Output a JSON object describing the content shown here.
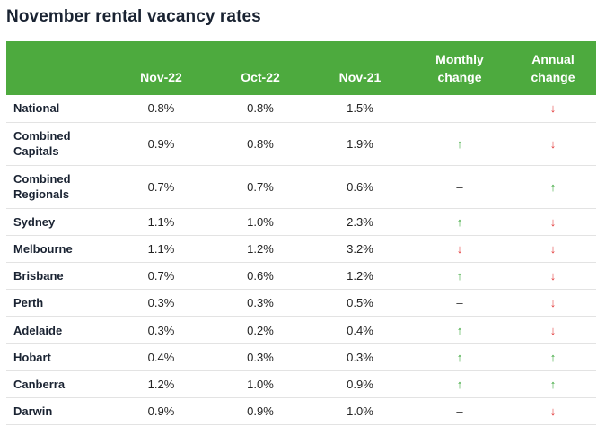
{
  "title": "November rental vacancy rates",
  "columns": [
    "",
    "Nov-22",
    "Oct-22",
    "Nov-21",
    "Monthly change",
    "Annual change"
  ],
  "rows": [
    {
      "label": "National",
      "nov22": "0.8%",
      "oct22": "0.8%",
      "nov21": "1.5%",
      "monthly": "–",
      "annual": "↓"
    },
    {
      "label": "Combined Capitals",
      "nov22": "0.9%",
      "oct22": "0.8%",
      "nov21": "1.9%",
      "monthly": "↑",
      "annual": "↓"
    },
    {
      "label": "Combined Regionals",
      "nov22": "0.7%",
      "oct22": "0.7%",
      "nov21": "0.6%",
      "monthly": "–",
      "annual": "↑"
    },
    {
      "label": "Sydney",
      "nov22": "1.1%",
      "oct22": "1.0%",
      "nov21": "2.3%",
      "monthly": "↑",
      "annual": "↓"
    },
    {
      "label": "Melbourne",
      "nov22": "1.1%",
      "oct22": "1.2%",
      "nov21": "3.2%",
      "monthly": "↓",
      "annual": "↓"
    },
    {
      "label": "Brisbane",
      "nov22": "0.7%",
      "oct22": "0.6%",
      "nov21": "1.2%",
      "monthly": "↑",
      "annual": "↓"
    },
    {
      "label": "Perth",
      "nov22": "0.3%",
      "oct22": "0.3%",
      "nov21": "0.5%",
      "monthly": "–",
      "annual": "↓"
    },
    {
      "label": "Adelaide",
      "nov22": "0.3%",
      "oct22": "0.2%",
      "nov21": "0.4%",
      "monthly": "↑",
      "annual": "↓"
    },
    {
      "label": "Hobart",
      "nov22": "0.4%",
      "oct22": "0.3%",
      "nov21": "0.3%",
      "monthly": "↑",
      "annual": "↑"
    },
    {
      "label": "Canberra",
      "nov22": "1.2%",
      "oct22": "1.0%",
      "nov21": "0.9%",
      "monthly": "↑",
      "annual": "↑"
    },
    {
      "label": "Darwin",
      "nov22": "0.9%",
      "oct22": "0.9%",
      "nov21": "1.0%",
      "monthly": "–",
      "annual": "↓"
    }
  ],
  "colors": {
    "header_bg": "#4daa3e",
    "up": "#3aa63a",
    "down": "#e23a3a"
  }
}
